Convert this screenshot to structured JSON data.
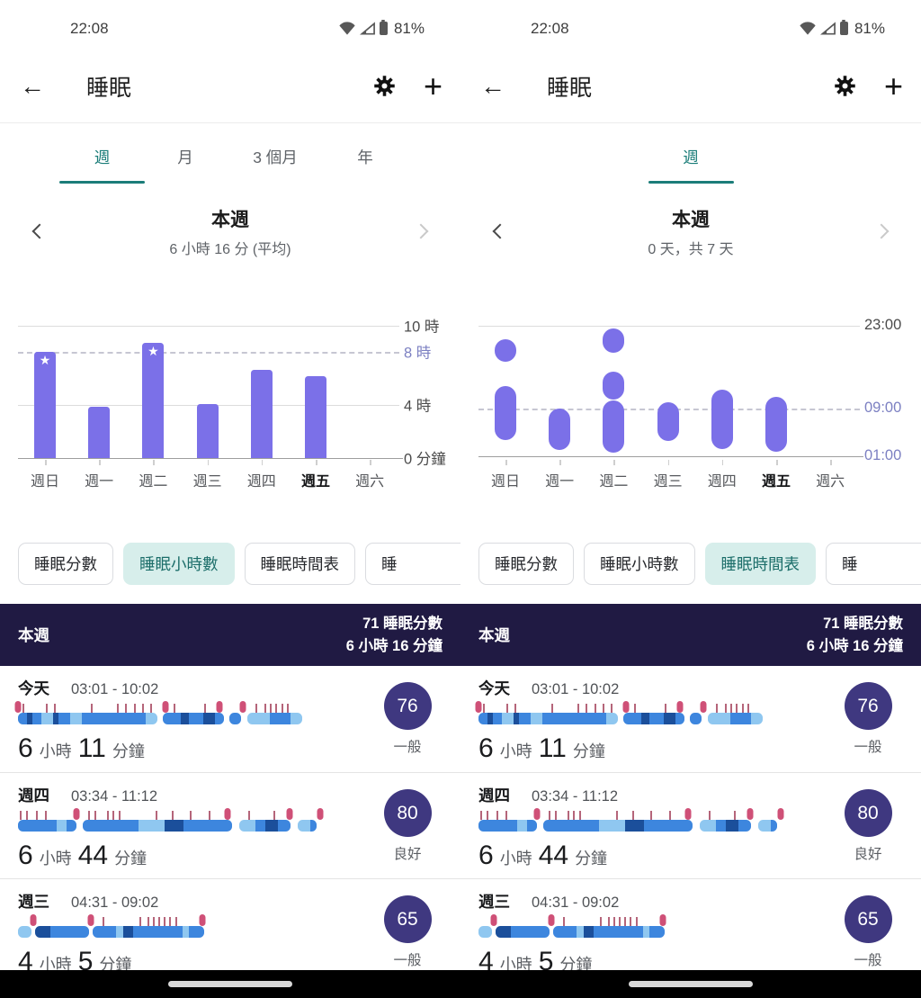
{
  "colors": {
    "accent_teal": "#1b7d79",
    "chip_selected_bg": "#d7eeeb",
    "chip_selected_text": "#1c6e6a",
    "bar_purple": "#7b70e8",
    "axis_accent_purple": "#7c80c2",
    "summary_band_bg": "#201a43",
    "score_badge_bg": "#3f3880",
    "stage_light": "#8fc7f0",
    "stage_core": "#3d86de",
    "stage_deep": "#1b4f9b",
    "wake_red": "#cf5077",
    "tick_red": "#a84a63"
  },
  "status_bar": {
    "time": "22:08",
    "battery_level": "81%"
  },
  "app_bar": {
    "title": "睡眠"
  },
  "icons": {
    "back": "←",
    "plus": "+",
    "star": "★"
  },
  "summary": {
    "title": "本週",
    "score": "71 睡眠分數",
    "duration": "6 小時 16 分鐘"
  },
  "units": {
    "hour": "小時",
    "minute": "分鐘"
  },
  "screens": [
    {
      "name": "sleep-hours-view",
      "tabs": [
        {
          "label": "週",
          "selected": true
        },
        {
          "label": "月",
          "selected": false
        },
        {
          "label": "3 個月",
          "selected": false
        },
        {
          "label": "年",
          "selected": false
        }
      ],
      "period": {
        "title": "本週",
        "subtitle": "6 小時 16 分 (平均)"
      },
      "chips": [
        {
          "label": "睡眠分數",
          "selected": false,
          "partial": false
        },
        {
          "label": "睡眠小時數",
          "selected": true,
          "partial": false
        },
        {
          "label": "睡眠時間表",
          "selected": false,
          "partial": false
        },
        {
          "label": "睡",
          "selected": false,
          "partial": true
        }
      ],
      "chart": 0
    },
    {
      "name": "sleep-schedule-view",
      "tabs": [
        {
          "label": "週",
          "selected": true
        }
      ],
      "period": {
        "title": "本週",
        "subtitle": "0 天，共 7 天"
      },
      "chips": [
        {
          "label": "睡眠分數",
          "selected": false,
          "partial": false
        },
        {
          "label": "睡眠小時數",
          "selected": false,
          "partial": false
        },
        {
          "label": "睡眠時間表",
          "selected": true,
          "partial": false
        },
        {
          "label": "睡",
          "selected": false,
          "partial": true
        }
      ],
      "chart": 1
    }
  ],
  "chart_data": [
    {
      "type": "bar",
      "title": "睡眠小時數",
      "categories": [
        "週日",
        "週一",
        "週二",
        "週三",
        "週四",
        "週五",
        "週六"
      ],
      "values": [
        8.0,
        3.9,
        8.7,
        4.1,
        6.7,
        6.2,
        null
      ],
      "starred": [
        true,
        false,
        true,
        false,
        false,
        false,
        false
      ],
      "highlighted_category": "週五",
      "ylim": [
        0,
        12.1
      ],
      "yticks": [
        {
          "value": 10,
          "label": "10 時",
          "style": "solid",
          "accent": false
        },
        {
          "value": 8,
          "label": "8 時",
          "style": "dashed",
          "accent": true
        },
        {
          "value": 4,
          "label": "4 時",
          "style": "solid",
          "accent": false
        },
        {
          "value": 0,
          "label": "0 分鐘",
          "style": "axis",
          "accent": false
        }
      ]
    },
    {
      "type": "schedule",
      "title": "睡眠時間表",
      "categories": [
        "週日",
        "週一",
        "週二",
        "週三",
        "週四",
        "週五",
        "週六"
      ],
      "sessions": [
        [
          {
            "start": 3.8,
            "end": 12.9
          },
          {
            "start": 17.0,
            "end": 20.8
          }
        ],
        [
          {
            "start": 2.1,
            "end": 9.1
          }
        ],
        [
          {
            "start": 1.7,
            "end": 10.4
          },
          {
            "start": 10.6,
            "end": 15.2
          },
          {
            "start": 18.4,
            "end": 22.5
          }
        ],
        [
          {
            "start": 3.6,
            "end": 10.1
          }
        ],
        [
          {
            "start": 2.2,
            "end": 12.3
          }
        ],
        [
          {
            "start": 1.8,
            "end": 11.0
          }
        ],
        []
      ],
      "highlighted_category": "週五",
      "ylim": [
        1,
        23
      ],
      "yticks": [
        {
          "value": 23,
          "label": "23:00",
          "style": "solid",
          "accent": false
        },
        {
          "value": 9,
          "label": "09:00",
          "style": "dashed",
          "accent": true
        },
        {
          "value": 1,
          "label": "01:00",
          "style": "axis",
          "accent": true
        }
      ]
    }
  ],
  "sleep_list": [
    {
      "day": "今天",
      "range": "03:01 - 10:02",
      "hours": "6",
      "minutes": "11",
      "score": "76",
      "quality": "一般",
      "track": {
        "width_pct": 81,
        "segments": [
          [
            "M",
            3
          ],
          [
            "D",
            2
          ],
          [
            "M",
            3
          ],
          [
            "L",
            4
          ],
          [
            "D",
            2
          ],
          [
            "M",
            4
          ],
          [
            "L",
            4
          ],
          [
            "M",
            22
          ],
          [
            "L",
            4
          ],
          [
            "G",
            2
          ],
          [
            "M",
            6
          ],
          [
            "D",
            3
          ],
          [
            "M",
            5
          ],
          [
            "D",
            4
          ],
          [
            "M",
            3
          ],
          [
            "G",
            2
          ],
          [
            "M",
            4
          ],
          [
            "G",
            2
          ],
          [
            "L",
            8
          ],
          [
            "M",
            7
          ],
          [
            "L",
            4
          ]
        ],
        "marks": [
          [
            0,
            "b"
          ],
          [
            2,
            "t"
          ],
          [
            10,
            "t"
          ],
          [
            13,
            "t"
          ],
          [
            26,
            "t"
          ],
          [
            35,
            "t"
          ],
          [
            38,
            "t"
          ],
          [
            41,
            "t"
          ],
          [
            44,
            "t"
          ],
          [
            47,
            "t"
          ],
          [
            52,
            "b"
          ],
          [
            55,
            "t"
          ],
          [
            66,
            "t"
          ],
          [
            71,
            "b"
          ],
          [
            79,
            "b"
          ],
          [
            84,
            "t"
          ],
          [
            87,
            "t"
          ],
          [
            89,
            "t"
          ],
          [
            91,
            "t"
          ],
          [
            93,
            "t"
          ],
          [
            95,
            "t"
          ]
        ]
      }
    },
    {
      "day": "週四",
      "range": "03:34 - 11:12",
      "hours": "6",
      "minutes": "44",
      "score": "80",
      "quality": "良好",
      "track": {
        "width_pct": 88,
        "segments": [
          [
            "M",
            12
          ],
          [
            "L",
            3
          ],
          [
            "M",
            3
          ],
          [
            "G",
            2
          ],
          [
            "M",
            17
          ],
          [
            "L",
            8
          ],
          [
            "D",
            6
          ],
          [
            "M",
            15
          ],
          [
            "G",
            2
          ],
          [
            "L",
            5
          ],
          [
            "M",
            3
          ],
          [
            "D",
            4
          ],
          [
            "M",
            4
          ],
          [
            "G",
            2
          ],
          [
            "L",
            4
          ],
          [
            "M",
            2
          ],
          [
            "G",
            3
          ]
        ],
        "marks": [
          [
            1,
            "t"
          ],
          [
            3,
            "t"
          ],
          [
            6,
            "t"
          ],
          [
            9,
            "t"
          ],
          [
            19,
            "b"
          ],
          [
            23,
            "t"
          ],
          [
            25,
            "t"
          ],
          [
            29,
            "t"
          ],
          [
            31,
            "t"
          ],
          [
            33,
            "t"
          ],
          [
            45,
            "t"
          ],
          [
            50,
            "t"
          ],
          [
            56,
            "t"
          ],
          [
            62,
            "t"
          ],
          [
            68,
            "b"
          ],
          [
            75,
            "t"
          ],
          [
            83,
            "t"
          ],
          [
            88,
            "b"
          ],
          [
            98,
            "b"
          ]
        ]
      }
    },
    {
      "day": "週三",
      "range": "04:31 - 09:02",
      "hours": "4",
      "minutes": "5",
      "score": "65",
      "quality": "一般",
      "track": {
        "width_pct": 53,
        "segments": [
          [
            "L",
            7
          ],
          [
            "G",
            2
          ],
          [
            "D",
            8
          ],
          [
            "M",
            20
          ],
          [
            "G",
            2
          ],
          [
            "M",
            12
          ],
          [
            "L",
            4
          ],
          [
            "D",
            5
          ],
          [
            "M",
            26
          ],
          [
            "L",
            3
          ],
          [
            "M",
            8
          ]
        ],
        "marks": [
          [
            8,
            "b"
          ],
          [
            39,
            "b"
          ],
          [
            46,
            "t"
          ],
          [
            66,
            "t"
          ],
          [
            70,
            "t"
          ],
          [
            73,
            "t"
          ],
          [
            76,
            "t"
          ],
          [
            79,
            "t"
          ],
          [
            82,
            "t"
          ],
          [
            85,
            "t"
          ],
          [
            99,
            "b"
          ]
        ]
      }
    }
  ]
}
